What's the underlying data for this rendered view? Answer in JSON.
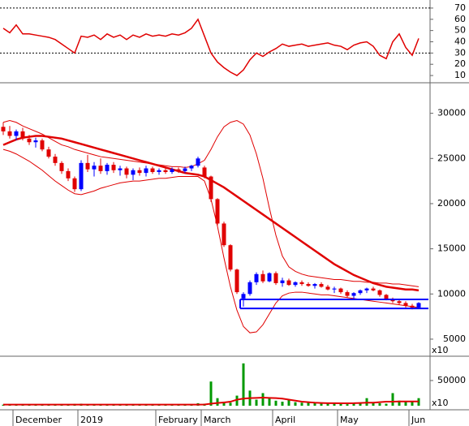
{
  "chart_data": [
    {
      "type": "line",
      "ylim": [
        5,
        75
      ],
      "yticks": [
        10,
        20,
        30,
        40,
        50,
        60,
        70
      ],
      "ref_lines": [
        70,
        30
      ],
      "series": [
        {
          "color": "#e00000",
          "values": [
            52,
            48,
            55,
            47,
            47,
            46,
            45,
            44,
            42,
            38,
            34,
            30,
            45,
            44,
            46,
            42,
            47,
            44,
            46,
            42,
            46,
            44,
            47,
            45,
            46,
            45,
            47,
            46,
            48,
            52,
            60,
            45,
            30,
            22,
            17,
            13,
            10,
            15,
            24,
            30,
            27,
            31,
            34,
            38,
            36,
            37,
            38,
            36,
            37,
            38,
            39,
            37,
            36,
            33,
            37,
            39,
            40,
            36,
            28,
            25,
            40,
            47,
            35,
            28,
            43
          ]
        }
      ]
    },
    {
      "type": "candlestick",
      "ylim": [
        3200,
        33200
      ],
      "yticks": [
        5000,
        10000,
        15000,
        20000,
        25000,
        30000
      ],
      "corner_label": "x10",
      "up_color": "#0000ff",
      "down_color": "#e00000",
      "support_levels": [
        9400,
        8400
      ],
      "support_color": "#0000ff",
      "open": [
        28500,
        28000,
        27500,
        28000,
        27200,
        26800,
        27000,
        26000,
        25200,
        24500,
        23600,
        22800,
        21600,
        24500,
        23800,
        24200,
        23600,
        24300,
        23700,
        23900,
        23200,
        23700,
        23400,
        23900,
        23500,
        23700,
        23500,
        23800,
        23600,
        23900,
        24200,
        24000,
        23000,
        20500,
        17800,
        15400,
        12700,
        9500,
        10000,
        11300,
        12200,
        11400,
        12300,
        11200,
        11500,
        11000,
        11300,
        11100,
        10900,
        11100,
        10800,
        10500,
        10600,
        10200,
        9800,
        10100,
        10400,
        10600,
        10400,
        9900,
        9400,
        9200,
        9000,
        8700,
        8500
      ],
      "high": [
        29000,
        28600,
        28200,
        28400,
        27600,
        27300,
        27200,
        26300,
        25500,
        24700,
        23900,
        23000,
        24800,
        25400,
        24600,
        25000,
        24500,
        24600,
        24200,
        24100,
        23900,
        24000,
        24200,
        24100,
        23900,
        23900,
        24000,
        24000,
        24100,
        24300,
        25200,
        24200,
        23100,
        20600,
        18000,
        15500,
        12800,
        10200,
        11500,
        12400,
        12600,
        12400,
        12500,
        11800,
        11700,
        11400,
        11500,
        11300,
        11200,
        11300,
        11000,
        10800,
        10700,
        10400,
        10200,
        10500,
        10700,
        10800,
        10500,
        10000,
        9600,
        9400,
        9200,
        8900,
        9100
      ],
      "low": [
        27600,
        27200,
        27000,
        27000,
        26500,
        26200,
        25800,
        25000,
        24200,
        23300,
        22500,
        21300,
        21400,
        23500,
        23000,
        23300,
        23200,
        23400,
        23100,
        22800,
        22600,
        23100,
        23000,
        23300,
        23200,
        23300,
        23300,
        23400,
        23400,
        23600,
        24000,
        22800,
        20200,
        17600,
        15200,
        12500,
        10000,
        8600,
        9800,
        11000,
        11200,
        11300,
        11000,
        10800,
        10900,
        10800,
        10900,
        10800,
        10600,
        10700,
        10400,
        10100,
        10000,
        9600,
        9500,
        9900,
        10100,
        10300,
        9700,
        9300,
        9000,
        8800,
        8500,
        8300,
        8400
      ],
      "close": [
        28000,
        27500,
        28000,
        27200,
        26800,
        27000,
        26000,
        25200,
        24500,
        23600,
        22800,
        21600,
        24500,
        23800,
        24200,
        23600,
        24300,
        23700,
        23900,
        23200,
        23700,
        23400,
        23900,
        23500,
        23700,
        23500,
        23800,
        23600,
        23900,
        24200,
        25000,
        23000,
        20500,
        17800,
        15400,
        12700,
        10200,
        10000,
        11300,
        12200,
        11400,
        12300,
        11200,
        11500,
        11000,
        11300,
        11100,
        10900,
        11100,
        10800,
        10500,
        10600,
        10200,
        9800,
        10100,
        10400,
        10600,
        10400,
        9900,
        9400,
        9200,
        9000,
        8700,
        8500,
        9000
      ],
      "series": [
        {
          "color": "#e00000",
          "width": 2.5,
          "values": [
            26500,
            26800,
            27100,
            27300,
            27400,
            27500,
            27500,
            27400,
            27300,
            27200,
            27000,
            26800,
            26600,
            26400,
            26200,
            26000,
            25800,
            25600,
            25400,
            25200,
            25000,
            24800,
            24600,
            24400,
            24200,
            24000,
            23800,
            23600,
            23400,
            23300,
            23200,
            23000,
            22600,
            22200,
            21800,
            21300,
            20800,
            20300,
            19800,
            19300,
            18800,
            18300,
            17800,
            17300,
            16800,
            16300,
            15800,
            15300,
            14800,
            14300,
            13800,
            13300,
            12900,
            12500,
            12100,
            11800,
            11500,
            11200,
            11000,
            10800,
            10700,
            10600,
            10500,
            10500,
            10400
          ]
        },
        {
          "color": "#e00000",
          "width": 1,
          "values": [
            29000,
            29200,
            29000,
            28600,
            28300,
            28000,
            27700,
            27300,
            26900,
            26500,
            26300,
            26000,
            25800,
            25600,
            25400,
            25200,
            25100,
            25000,
            24900,
            24800,
            24700,
            24600,
            24500,
            24400,
            24300,
            24200,
            24100,
            24100,
            24000,
            24100,
            24400,
            24800,
            26000,
            27400,
            28500,
            29000,
            29200,
            28800,
            27600,
            25500,
            22800,
            19500,
            16500,
            14200,
            13000,
            12500,
            12200,
            12000,
            11900,
            11800,
            11700,
            11600,
            11600,
            11500,
            11400,
            11400,
            11300,
            11300,
            11200,
            11200,
            11100,
            11100,
            11000,
            10900,
            10800
          ]
        },
        {
          "color": "#e00000",
          "width": 1,
          "values": [
            26000,
            25800,
            25500,
            25100,
            24700,
            24200,
            23700,
            23100,
            22500,
            22000,
            21500,
            21100,
            21000,
            21200,
            21400,
            21700,
            21900,
            22100,
            22300,
            22400,
            22500,
            22500,
            22600,
            22700,
            22800,
            22800,
            22900,
            23000,
            23000,
            23000,
            23000,
            22500,
            20500,
            17500,
            14000,
            10800,
            8200,
            6400,
            5700,
            5800,
            6600,
            7800,
            9000,
            9800,
            10100,
            10200,
            10200,
            10100,
            10000,
            9900,
            9900,
            9800,
            9700,
            9600,
            9500,
            9400,
            9300,
            9200,
            9100,
            9000,
            8900,
            8800,
            8700,
            8600,
            8500
          ]
        }
      ]
    },
    {
      "type": "bar",
      "ylim": [
        0,
        95000
      ],
      "yticks": [
        50000
      ],
      "corner_label": "x10",
      "color": "#009900",
      "categories": [
        null,
        null,
        "December",
        null,
        null,
        null,
        null,
        null,
        null,
        null,
        null,
        null,
        "2019",
        null,
        null,
        null,
        null,
        null,
        null,
        null,
        null,
        null,
        null,
        null,
        "February",
        null,
        null,
        null,
        null,
        null,
        null,
        "March",
        null,
        null,
        null,
        null,
        null,
        null,
        null,
        null,
        null,
        null,
        "April",
        null,
        null,
        null,
        null,
        null,
        null,
        null,
        null,
        null,
        "May",
        null,
        null,
        null,
        null,
        null,
        null,
        null,
        null,
        null,
        null,
        "Jun",
        null
      ],
      "values": [
        2000,
        2500,
        1500,
        3000,
        2000,
        2500,
        1800,
        2200,
        3000,
        2500,
        2800,
        3500,
        4000,
        3000,
        2500,
        2000,
        2500,
        3000,
        2200,
        1800,
        2000,
        2500,
        1500,
        2000,
        1800,
        1500,
        2000,
        1500,
        2000,
        3000,
        5000,
        4000,
        48000,
        15000,
        8000,
        6000,
        20000,
        84000,
        30000,
        12000,
        25000,
        15000,
        10000,
        8000,
        12000,
        7000,
        6000,
        8000,
        5000,
        6000,
        4000,
        5000,
        4000,
        3000,
        6000,
        5000,
        15000,
        6000,
        5000,
        4000,
        25000,
        10000,
        8000,
        9000,
        15000
      ],
      "series": [
        {
          "color": "#e00000",
          "width": 2,
          "values": [
            2200,
            2200,
            2200,
            2200,
            2200,
            2200,
            2200,
            2200,
            2200,
            2200,
            2200,
            2200,
            2200,
            2200,
            2200,
            2200,
            2200,
            2200,
            2200,
            2200,
            2200,
            2200,
            2200,
            2200,
            2200,
            2200,
            2200,
            2200,
            2200,
            2200,
            2200,
            2500,
            4000,
            5500,
            6500,
            8000,
            12000,
            14000,
            15000,
            15500,
            16000,
            15500,
            15000,
            14000,
            12000,
            10000,
            8000,
            7000,
            6000,
            5500,
            5000,
            5000,
            4800,
            4800,
            5000,
            5500,
            6000,
            6000,
            7000,
            8000,
            8000,
            8500,
            8500,
            8500,
            8500
          ]
        }
      ]
    }
  ]
}
